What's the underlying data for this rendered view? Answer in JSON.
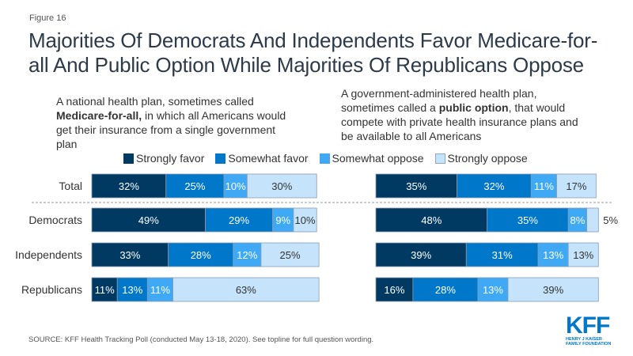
{
  "figure_label": "Figure 16",
  "title": "Majorities Of Democrats And Independents Favor Medicare-for-all And Public Option While Majorities Of Republicans Oppose",
  "questions": {
    "left": {
      "pre": "A national health plan, sometimes called ",
      "bold": "Medicare-for-all,",
      "post": " in which all Americans would get their insurance from a single government plan"
    },
    "right": {
      "pre": "A government-administered health plan, sometimes called a ",
      "bold": "public option",
      "post": ", that would compete with private health insurance plans and be available to all Americans"
    }
  },
  "source": "SOURCE: KFF Health Tracking Poll (conducted May 13-18, 2020). See topline for full question wording.",
  "logo": {
    "main": "KFF",
    "line1": "HENRY J KAISER",
    "line2": "FAMILY FOUNDATION"
  },
  "chart_data": {
    "type": "bar",
    "orientation": "horizontal",
    "stacked": true,
    "title": "Majorities Of Democrats And Independents Favor Medicare-for-all And Public Option While Majorities Of Republicans Oppose",
    "categories": [
      "Total",
      "Democrats",
      "Independents",
      "Republicans"
    ],
    "legend": [
      {
        "name": "Strongly favor",
        "color": "#003a63"
      },
      {
        "name": "Somewhat favor",
        "color": "#0077c8"
      },
      {
        "name": "Somewhat oppose",
        "color": "#3fa9f5"
      },
      {
        "name": "Strongly oppose",
        "color": "#c5e4fb"
      }
    ],
    "legend_position": "top",
    "xlim": [
      0,
      100
    ],
    "units": "%",
    "panels": [
      {
        "name": "Medicare-for-all",
        "series": [
          {
            "name": "Strongly favor",
            "values": [
              32,
              49,
              33,
              11
            ]
          },
          {
            "name": "Somewhat favor",
            "values": [
              25,
              29,
              28,
              13
            ]
          },
          {
            "name": "Somewhat oppose",
            "values": [
              10,
              9,
              12,
              11
            ]
          },
          {
            "name": "Strongly oppose",
            "values": [
              30,
              10,
              25,
              63
            ]
          }
        ]
      },
      {
        "name": "Public option",
        "series": [
          {
            "name": "Strongly favor",
            "values": [
              35,
              48,
              39,
              16
            ]
          },
          {
            "name": "Somewhat favor",
            "values": [
              32,
              35,
              31,
              28
            ]
          },
          {
            "name": "Somewhat oppose",
            "values": [
              11,
              8,
              13,
              13
            ]
          },
          {
            "name": "Strongly oppose",
            "values": [
              17,
              5,
              13,
              39
            ]
          }
        ]
      }
    ]
  }
}
